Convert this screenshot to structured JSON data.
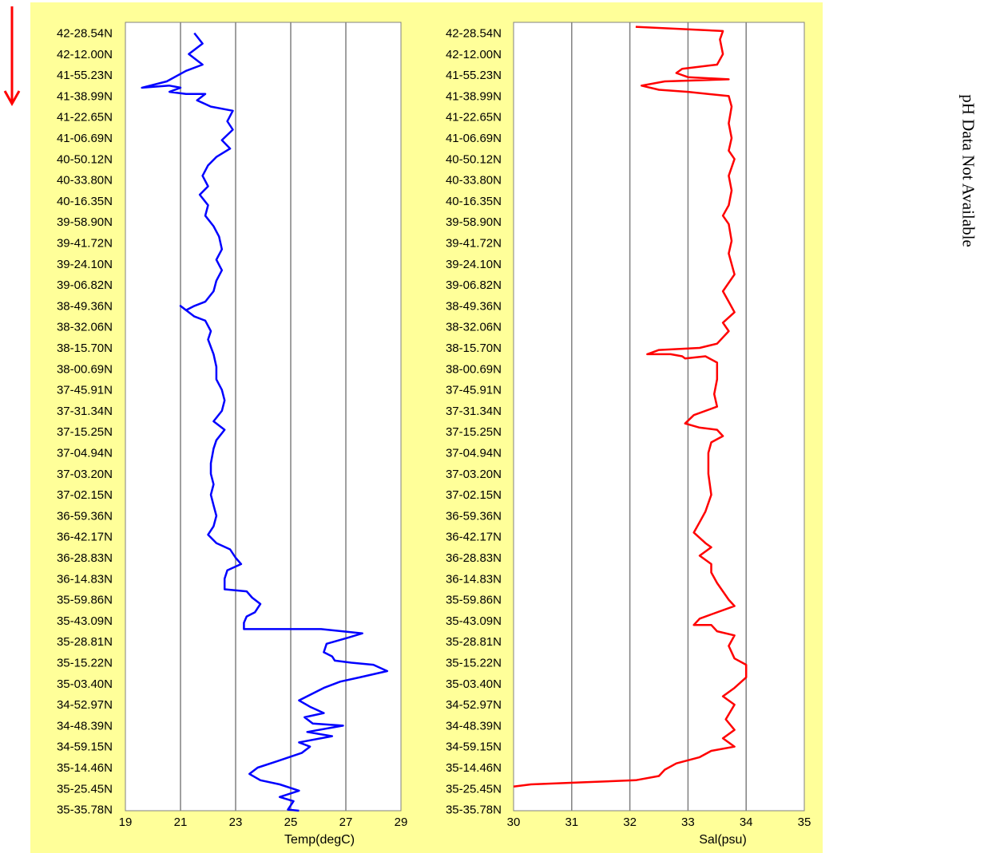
{
  "side_note": "pH Data Not Available",
  "colors": {
    "background": "#ffff99",
    "temp_line": "#0000ff",
    "sal_line": "#ff0000",
    "arrow": "#ff0000",
    "grid": "#808080"
  },
  "direction_arrow_icon": "down-arrow-icon",
  "chart_data": [
    {
      "type": "line",
      "xlabel": "Temp(degC)",
      "ylabel": "",
      "xlim": [
        19,
        29
      ],
      "xticks": [
        19,
        21,
        23,
        25,
        27,
        29
      ],
      "grid": "vertical",
      "y_categories": [
        "42-28.54N",
        "42-12.00N",
        "41-55.23N",
        "41-38.99N",
        "41-22.65N",
        "41-06.69N",
        "40-50.12N",
        "40-33.80N",
        "40-16.35N",
        "39-58.90N",
        "39-41.72N",
        "39-24.10N",
        "39-06.82N",
        "38-49.36N",
        "38-32.06N",
        "38-15.70N",
        "38-00.69N",
        "37-45.91N",
        "37-31.34N",
        "37-15.25N",
        "37-04.94N",
        "37-03.20N",
        "37-02.15N",
        "36-59.36N",
        "36-42.17N",
        "36-28.83N",
        "36-14.83N",
        "35-59.86N",
        "35-43.09N",
        "35-28.81N",
        "35-15.22N",
        "35-03.40N",
        "34-52.97N",
        "34-48.39N",
        "34-59.15N",
        "35-14.46N",
        "35-25.45N",
        "35-35.78N"
      ],
      "series": [
        {
          "color": "#0000ff",
          "points": [
            [
              21.5,
              0.0
            ],
            [
              21.8,
              0.5
            ],
            [
              21.3,
              1.0
            ],
            [
              21.8,
              1.5
            ],
            [
              21.2,
              1.8
            ],
            [
              20.5,
              2.3
            ],
            [
              19.6,
              2.6
            ],
            [
              20.6,
              2.5
            ],
            [
              21.0,
              2.6
            ],
            [
              20.6,
              2.8
            ],
            [
              21.2,
              2.9
            ],
            [
              21.9,
              2.9
            ],
            [
              21.6,
              3.2
            ],
            [
              22.1,
              3.5
            ],
            [
              22.9,
              3.7
            ],
            [
              22.7,
              4.2
            ],
            [
              22.9,
              4.6
            ],
            [
              22.5,
              5.1
            ],
            [
              22.8,
              5.5
            ],
            [
              22.3,
              5.9
            ],
            [
              22.0,
              6.3
            ],
            [
              21.8,
              6.8
            ],
            [
              22.0,
              7.3
            ],
            [
              21.7,
              7.7
            ],
            [
              22.0,
              8.2
            ],
            [
              21.9,
              8.7
            ],
            [
              22.2,
              9.2
            ],
            [
              22.4,
              9.7
            ],
            [
              22.5,
              10.3
            ],
            [
              22.3,
              10.8
            ],
            [
              22.5,
              11.3
            ],
            [
              22.3,
              11.8
            ],
            [
              22.2,
              12.3
            ],
            [
              21.9,
              12.8
            ],
            [
              21.5,
              13.0
            ],
            [
              21.2,
              13.2
            ],
            [
              21.0,
              13.0
            ],
            [
              21.5,
              13.5
            ],
            [
              21.9,
              13.7
            ],
            [
              22.1,
              14.2
            ],
            [
              22.0,
              14.6
            ],
            [
              22.2,
              15.3
            ],
            [
              22.3,
              15.9
            ],
            [
              22.3,
              16.5
            ],
            [
              22.5,
              17.0
            ],
            [
              22.6,
              17.5
            ],
            [
              22.5,
              18.0
            ],
            [
              22.2,
              18.5
            ],
            [
              22.6,
              18.9
            ],
            [
              22.3,
              19.4
            ],
            [
              22.2,
              19.8
            ],
            [
              22.1,
              20.5
            ],
            [
              22.1,
              21.0
            ],
            [
              22.2,
              21.5
            ],
            [
              22.1,
              22.0
            ],
            [
              22.2,
              22.5
            ],
            [
              22.3,
              23.0
            ],
            [
              22.2,
              23.5
            ],
            [
              22.0,
              23.9
            ],
            [
              22.3,
              24.3
            ],
            [
              22.8,
              24.6
            ],
            [
              23.0,
              25.0
            ],
            [
              23.2,
              25.3
            ],
            [
              22.7,
              25.6
            ],
            [
              22.6,
              26.0
            ],
            [
              22.6,
              26.5
            ],
            [
              23.4,
              26.6
            ],
            [
              23.6,
              26.9
            ],
            [
              23.9,
              27.2
            ],
            [
              23.8,
              27.4
            ],
            [
              23.7,
              27.6
            ],
            [
              23.4,
              27.8
            ],
            [
              23.3,
              28.1
            ],
            [
              23.3,
              28.4
            ],
            [
              24.5,
              28.4
            ],
            [
              26.1,
              28.4
            ],
            [
              27.6,
              28.6
            ],
            [
              27.1,
              28.8
            ],
            [
              26.3,
              29.1
            ],
            [
              26.2,
              29.5
            ],
            [
              26.5,
              29.7
            ],
            [
              26.6,
              29.9
            ],
            [
              27.2,
              30.0
            ],
            [
              28.0,
              30.1
            ],
            [
              28.5,
              30.4
            ],
            [
              27.5,
              30.7
            ],
            [
              26.8,
              30.9
            ],
            [
              26.2,
              31.2
            ],
            [
              25.3,
              31.8
            ],
            [
              25.7,
              32.1
            ],
            [
              26.2,
              32.4
            ],
            [
              25.5,
              32.6
            ],
            [
              25.8,
              32.9
            ],
            [
              26.9,
              33.0
            ],
            [
              25.6,
              33.3
            ],
            [
              26.5,
              33.5
            ],
            [
              25.3,
              33.8
            ],
            [
              25.7,
              34.0
            ],
            [
              25.4,
              34.3
            ],
            [
              24.5,
              34.7
            ],
            [
              23.8,
              35.0
            ],
            [
              23.5,
              35.3
            ],
            [
              23.9,
              35.6
            ],
            [
              24.6,
              35.8
            ],
            [
              25.3,
              36.1
            ],
            [
              24.6,
              36.4
            ],
            [
              25.1,
              36.6
            ],
            [
              24.9,
              37.0
            ],
            [
              25.3,
              37.3
            ],
            [
              25.3,
              37.5
            ]
          ]
        }
      ]
    },
    {
      "type": "line",
      "xlabel": "Sal(psu)",
      "ylabel": "",
      "xlim": [
        30,
        35
      ],
      "xticks": [
        30,
        31,
        32,
        33,
        34,
        35
      ],
      "grid": "vertical",
      "y_categories": [
        "42-28.54N",
        "42-12.00N",
        "41-55.23N",
        "41-38.99N",
        "41-22.65N",
        "41-06.69N",
        "40-50.12N",
        "40-33.80N",
        "40-16.35N",
        "39-58.90N",
        "39-41.72N",
        "39-24.10N",
        "39-06.82N",
        "38-49.36N",
        "38-32.06N",
        "38-15.70N",
        "38-00.69N",
        "37-45.91N",
        "37-31.34N",
        "37-15.25N",
        "37-04.94N",
        "37-03.20N",
        "37-02.15N",
        "36-59.36N",
        "36-42.17N",
        "36-28.83N",
        "36-14.83N",
        "35-59.86N",
        "35-43.09N",
        "35-28.81N",
        "35-15.22N",
        "35-03.40N",
        "34-52.97N",
        "34-48.39N",
        "34-59.15N",
        "35-14.46N",
        "35-25.45N",
        "35-35.78N"
      ],
      "series": [
        {
          "color": "#ff0000",
          "points": [
            [
              32.1,
              -0.3
            ],
            [
              33.6,
              -0.1
            ],
            [
              33.55,
              0.3
            ],
            [
              33.6,
              1.0
            ],
            [
              33.5,
              1.5
            ],
            [
              32.9,
              1.7
            ],
            [
              32.8,
              1.9
            ],
            [
              33.0,
              2.1
            ],
            [
              33.7,
              2.2
            ],
            [
              32.6,
              2.3
            ],
            [
              32.2,
              2.5
            ],
            [
              32.5,
              2.7
            ],
            [
              33.0,
              2.8
            ],
            [
              33.7,
              3.0
            ],
            [
              33.75,
              3.5
            ],
            [
              33.7,
              4.3
            ],
            [
              33.75,
              5.0
            ],
            [
              33.7,
              5.6
            ],
            [
              33.8,
              6.0
            ],
            [
              33.7,
              6.8
            ],
            [
              33.75,
              7.5
            ],
            [
              33.7,
              8.2
            ],
            [
              33.6,
              8.7
            ],
            [
              33.7,
              9.1
            ],
            [
              33.75,
              9.9
            ],
            [
              33.7,
              10.5
            ],
            [
              33.8,
              11.5
            ],
            [
              33.6,
              12.3
            ],
            [
              33.7,
              12.8
            ],
            [
              33.8,
              13.3
            ],
            [
              33.6,
              13.8
            ],
            [
              33.7,
              14.2
            ],
            [
              33.5,
              14.8
            ],
            [
              33.2,
              15.0
            ],
            [
              32.5,
              15.1
            ],
            [
              32.3,
              15.3
            ],
            [
              32.7,
              15.3
            ],
            [
              32.9,
              15.4
            ],
            [
              32.95,
              15.5
            ],
            [
              33.3,
              15.4
            ],
            [
              33.5,
              15.7
            ],
            [
              33.5,
              16.5
            ],
            [
              33.45,
              17.2
            ],
            [
              33.5,
              17.8
            ],
            [
              33.1,
              18.2
            ],
            [
              32.95,
              18.6
            ],
            [
              33.2,
              18.8
            ],
            [
              33.5,
              18.9
            ],
            [
              33.6,
              19.2
            ],
            [
              33.4,
              19.5
            ],
            [
              33.35,
              20.0
            ],
            [
              33.35,
              21.0
            ],
            [
              33.4,
              22.0
            ],
            [
              33.3,
              22.8
            ],
            [
              33.2,
              23.3
            ],
            [
              33.1,
              23.8
            ],
            [
              33.3,
              24.3
            ],
            [
              33.4,
              24.5
            ],
            [
              33.2,
              24.9
            ],
            [
              33.4,
              25.3
            ],
            [
              33.4,
              25.7
            ],
            [
              33.5,
              26.2
            ],
            [
              33.6,
              26.6
            ],
            [
              33.7,
              27.0
            ],
            [
              33.8,
              27.3
            ],
            [
              33.4,
              27.7
            ],
            [
              33.2,
              27.9
            ],
            [
              33.1,
              28.2
            ],
            [
              33.4,
              28.2
            ],
            [
              33.5,
              28.5
            ],
            [
              33.8,
              28.7
            ],
            [
              33.7,
              29.2
            ],
            [
              33.8,
              29.8
            ],
            [
              34.0,
              30.1
            ],
            [
              34.0,
              30.7
            ],
            [
              33.8,
              31.2
            ],
            [
              33.6,
              31.6
            ],
            [
              33.8,
              32.0
            ],
            [
              33.65,
              32.7
            ],
            [
              33.8,
              33.2
            ],
            [
              33.6,
              33.6
            ],
            [
              33.8,
              34.0
            ],
            [
              33.4,
              34.2
            ],
            [
              33.2,
              34.5
            ],
            [
              32.8,
              34.8
            ],
            [
              32.6,
              35.1
            ],
            [
              32.5,
              35.4
            ],
            [
              32.1,
              35.6
            ],
            [
              31.2,
              35.7
            ],
            [
              30.3,
              35.8
            ],
            [
              30.0,
              35.9
            ]
          ]
        }
      ]
    }
  ]
}
